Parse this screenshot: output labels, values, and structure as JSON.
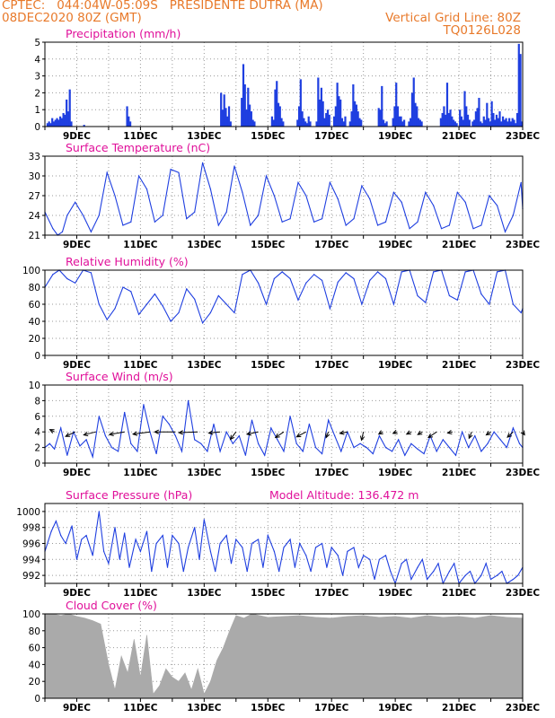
{
  "header": {
    "line1_left": "CPTEC:   044:04W-05:09S   PRESIDENTE DUTRA (MA)",
    "line2_left": "08DEC2020 80Z (GMT)",
    "line2_right": "Vertical Grid Line: 80Z",
    "line3_right": "TQ0126L028"
  },
  "colors": {
    "header": "#e8792a",
    "panel_title": "#e0109a",
    "series": "#1f3fe0",
    "cloud": "#aaaaaa",
    "wind_arrow": "#000000"
  },
  "chart_data": [
    {
      "type": "bar",
      "title": "Precipitation (mm/h)",
      "xlabel": "",
      "ylabel": "",
      "x_ticks": [
        "9DEC",
        "11DEC",
        "13DEC",
        "15DEC",
        "17DEC",
        "19DEC",
        "21DEC",
        "23DEC"
      ],
      "x_range_days": [
        8.0,
        23.0
      ],
      "ylim": [
        0,
        5
      ],
      "y_ticks": [
        0,
        1,
        2,
        3,
        4,
        5
      ],
      "grid": true,
      "x_days": [
        8.05,
        8.1,
        8.15,
        8.2,
        8.25,
        8.3,
        8.35,
        8.4,
        8.45,
        8.5,
        8.55,
        8.6,
        8.65,
        8.7,
        8.75,
        8.8,
        9.2,
        10.55,
        10.6,
        10.65,
        13.5,
        13.55,
        13.6,
        13.65,
        13.7,
        13.75,
        13.8,
        14.15,
        14.2,
        14.25,
        14.3,
        14.35,
        14.4,
        14.45,
        14.5,
        14.55,
        15.1,
        15.15,
        15.2,
        15.25,
        15.3,
        15.35,
        15.4,
        15.45,
        15.9,
        15.95,
        16.0,
        16.05,
        16.1,
        16.15,
        16.2,
        16.25,
        16.3,
        16.5,
        16.55,
        16.6,
        16.65,
        16.7,
        16.75,
        16.8,
        16.85,
        16.9,
        17.05,
        17.1,
        17.15,
        17.2,
        17.25,
        17.3,
        17.35,
        17.4,
        17.55,
        17.6,
        17.65,
        17.7,
        17.75,
        17.8,
        17.85,
        17.9,
        18.45,
        18.5,
        18.55,
        18.6,
        18.65,
        18.7,
        18.9,
        18.95,
        19.0,
        19.05,
        19.1,
        19.15,
        19.2,
        19.25,
        19.4,
        19.45,
        19.5,
        19.55,
        19.6,
        19.65,
        19.7,
        19.75,
        19.8,
        20.4,
        20.45,
        20.5,
        20.55,
        20.6,
        20.65,
        20.7,
        20.75,
        20.8,
        20.85,
        20.9,
        21.0,
        21.05,
        21.1,
        21.15,
        21.2,
        21.25,
        21.3,
        21.4,
        21.45,
        21.5,
        21.55,
        21.6,
        21.65,
        21.7,
        21.75,
        21.8,
        21.85,
        21.9,
        21.95,
        22.0,
        22.05,
        22.1,
        22.15,
        22.2,
        22.25,
        22.3,
        22.35,
        22.4,
        22.45,
        22.5,
        22.55,
        22.6,
        22.65,
        22.7,
        22.75,
        22.8,
        22.85,
        22.9,
        22.95
      ],
      "values": [
        0.2,
        0.3,
        0.2,
        0.5,
        0.3,
        0.4,
        0.5,
        0.4,
        0.6,
        0.5,
        0.8,
        0.7,
        1.6,
        0.9,
        2.2,
        0.3,
        0.1,
        1.2,
        0.6,
        0.3,
        2.0,
        1.0,
        1.9,
        1.1,
        0.6,
        1.2,
        0.3,
        1.7,
        3.7,
        2.5,
        1.0,
        2.3,
        1.3,
        0.9,
        0.4,
        0.3,
        0.6,
        0.4,
        2.2,
        2.7,
        1.4,
        1.2,
        0.5,
        0.3,
        0.4,
        1.2,
        2.8,
        0.9,
        0.5,
        0.3,
        0.2,
        0.6,
        0.3,
        0.3,
        2.9,
        1.6,
        2.3,
        1.5,
        0.5,
        0.8,
        1.0,
        0.7,
        0.6,
        1.2,
        2.6,
        1.8,
        1.6,
        0.5,
        0.3,
        0.6,
        0.3,
        0.9,
        2.5,
        1.5,
        1.3,
        0.9,
        0.5,
        0.4,
        1.1,
        1.0,
        2.4,
        0.4,
        0.2,
        0.3,
        0.5,
        1.2,
        2.6,
        1.2,
        0.6,
        0.6,
        0.3,
        0.4,
        0.3,
        0.5,
        2.0,
        2.9,
        1.4,
        1.2,
        0.5,
        0.4,
        0.3,
        0.5,
        0.8,
        1.2,
        0.7,
        2.6,
        0.8,
        1.0,
        0.6,
        0.4,
        0.3,
        0.2,
        1.0,
        0.6,
        0.4,
        2.1,
        1.2,
        0.7,
        0.4,
        0.3,
        0.4,
        0.9,
        1.1,
        1.7,
        0.3,
        0.2,
        0.6,
        0.4,
        1.4,
        0.5,
        0.3,
        1.5,
        0.8,
        0.4,
        0.7,
        0.5,
        0.9,
        0.3,
        0.6,
        0.4,
        0.5,
        0.3,
        0.5,
        0.3,
        0.5,
        0.4,
        0.2,
        0.8,
        4.9,
        4.3,
        0.3
      ]
    },
    {
      "type": "line",
      "title": "Surface Temperature (nC)",
      "xlabel": "",
      "ylabel": "",
      "x_ticks": [
        "9DEC",
        "11DEC",
        "13DEC",
        "15DEC",
        "17DEC",
        "19DEC",
        "21DEC",
        "23DEC"
      ],
      "x_range_days": [
        8.0,
        23.0
      ],
      "ylim": [
        21,
        33
      ],
      "y_ticks": [
        21,
        24,
        27,
        30,
        33
      ],
      "grid": true,
      "x_days": [
        8.0,
        8.25,
        8.4,
        8.55,
        8.7,
        8.95,
        9.2,
        9.45,
        9.7,
        9.95,
        10.2,
        10.45,
        10.7,
        10.95,
        11.2,
        11.45,
        11.7,
        11.95,
        12.2,
        12.45,
        12.7,
        12.95,
        13.2,
        13.45,
        13.7,
        13.95,
        14.2,
        14.45,
        14.7,
        14.95,
        15.2,
        15.45,
        15.7,
        15.95,
        16.2,
        16.45,
        16.7,
        16.95,
        17.2,
        17.45,
        17.7,
        17.95,
        18.2,
        18.45,
        18.7,
        18.95,
        19.2,
        19.45,
        19.7,
        19.95,
        20.2,
        20.45,
        20.7,
        20.95,
        21.2,
        21.45,
        21.7,
        21.95,
        22.2,
        22.45,
        22.7,
        22.95,
        23.0
      ],
      "values": [
        24.5,
        22.0,
        21.0,
        21.5,
        24.0,
        26.0,
        24.0,
        21.5,
        24.0,
        30.5,
        27.0,
        22.5,
        23.0,
        30.0,
        28.0,
        23.0,
        24.0,
        31.0,
        30.5,
        23.5,
        24.5,
        32.0,
        28.0,
        22.5,
        24.5,
        31.5,
        27.5,
        22.5,
        24.0,
        30.0,
        27.0,
        23.0,
        23.5,
        29.0,
        27.0,
        23.0,
        23.5,
        29.0,
        26.5,
        22.5,
        23.5,
        28.5,
        26.5,
        22.5,
        23.0,
        27.5,
        26.0,
        22.0,
        23.0,
        27.5,
        25.5,
        22.0,
        22.5,
        27.5,
        26.0,
        22.0,
        22.5,
        27.0,
        25.5,
        21.5,
        24.0,
        29.0,
        25.0
      ]
    },
    {
      "type": "line",
      "title": "Relative Humidity (%)",
      "xlabel": "",
      "ylabel": "",
      "x_ticks": [
        "9DEC",
        "11DEC",
        "13DEC",
        "15DEC",
        "17DEC",
        "19DEC",
        "21DEC",
        "23DEC"
      ],
      "x_range_days": [
        8.0,
        23.0
      ],
      "ylim": [
        0,
        100
      ],
      "y_ticks": [
        0,
        20,
        40,
        60,
        80,
        100
      ],
      "grid": true,
      "x_days": [
        8.0,
        8.25,
        8.45,
        8.7,
        8.95,
        9.2,
        9.45,
        9.7,
        9.95,
        10.2,
        10.45,
        10.7,
        10.95,
        11.2,
        11.45,
        11.7,
        11.95,
        12.2,
        12.45,
        12.7,
        12.95,
        13.2,
        13.45,
        13.7,
        13.95,
        14.2,
        14.45,
        14.7,
        14.95,
        15.2,
        15.45,
        15.7,
        15.95,
        16.2,
        16.45,
        16.7,
        16.95,
        17.2,
        17.45,
        17.7,
        17.95,
        18.2,
        18.45,
        18.7,
        18.95,
        19.2,
        19.45,
        19.7,
        19.95,
        20.2,
        20.45,
        20.7,
        20.95,
        21.2,
        21.45,
        21.7,
        21.95,
        22.2,
        22.45,
        22.7,
        22.95,
        23.0
      ],
      "values": [
        80,
        95,
        100,
        90,
        85,
        100,
        97,
        60,
        42,
        55,
        80,
        75,
        48,
        60,
        72,
        58,
        40,
        50,
        78,
        66,
        38,
        50,
        70,
        60,
        50,
        95,
        100,
        85,
        60,
        90,
        98,
        90,
        65,
        85,
        95,
        88,
        55,
        86,
        97,
        90,
        60,
        88,
        98,
        90,
        60,
        98,
        100,
        70,
        62,
        98,
        100,
        70,
        65,
        98,
        100,
        72,
        60,
        98,
        100,
        60,
        50,
        55
      ]
    },
    {
      "type": "line",
      "title": "Surface Wind (m/s)",
      "xlabel": "",
      "ylabel": "",
      "x_ticks": [
        "9DEC",
        "11DEC",
        "13DEC",
        "15DEC",
        "17DEC",
        "19DEC",
        "21DEC",
        "23DEC"
      ],
      "x_range_days": [
        8.0,
        23.0
      ],
      "ylim": [
        0,
        10
      ],
      "y_ticks": [
        0,
        2,
        4,
        6,
        8,
        10
      ],
      "grid": true,
      "x_days": [
        8.0,
        8.15,
        8.3,
        8.5,
        8.7,
        8.9,
        9.1,
        9.3,
        9.5,
        9.7,
        9.9,
        10.1,
        10.3,
        10.5,
        10.7,
        10.9,
        11.1,
        11.3,
        11.5,
        11.7,
        11.9,
        12.1,
        12.3,
        12.5,
        12.7,
        12.9,
        13.1,
        13.3,
        13.5,
        13.7,
        13.9,
        14.1,
        14.3,
        14.5,
        14.7,
        14.9,
        15.1,
        15.3,
        15.5,
        15.7,
        15.9,
        16.1,
        16.3,
        16.5,
        16.7,
        16.9,
        17.1,
        17.3,
        17.5,
        17.7,
        17.9,
        18.1,
        18.3,
        18.5,
        18.7,
        18.9,
        19.1,
        19.3,
        19.5,
        19.7,
        19.9,
        20.1,
        20.3,
        20.5,
        20.7,
        20.9,
        21.1,
        21.3,
        21.5,
        21.7,
        21.9,
        22.1,
        22.3,
        22.5,
        22.7,
        22.9,
        23.0
      ],
      "values": [
        2.0,
        2.5,
        1.8,
        4.5,
        1.0,
        4.0,
        2.2,
        3.0,
        0.8,
        6.0,
        3.5,
        2.0,
        1.5,
        6.5,
        2.5,
        1.5,
        7.5,
        4.0,
        1.2,
        6.0,
        5.0,
        3.5,
        1.5,
        8.0,
        3.0,
        2.5,
        1.5,
        5.0,
        1.5,
        4.0,
        2.5,
        3.5,
        1.0,
        5.5,
        2.5,
        1.0,
        4.5,
        3.0,
        1.5,
        6.0,
        2.5,
        1.5,
        5.0,
        2.0,
        1.2,
        5.5,
        3.5,
        1.5,
        4.0,
        2.0,
        2.5,
        2.0,
        1.2,
        3.5,
        2.0,
        1.5,
        3.0,
        1.0,
        2.5,
        1.8,
        1.2,
        3.5,
        1.5,
        3.0,
        2.0,
        1.0,
        4.0,
        2.0,
        3.5,
        1.5,
        2.5,
        4.0,
        3.0,
        2.0,
        4.5,
        2.5,
        2.0
      ],
      "wind_arrows": [
        {
          "day": 8.3,
          "u": 1.2,
          "v": -0.6
        },
        {
          "day": 8.95,
          "u": 2.5,
          "v": 1.2
        },
        {
          "day": 9.6,
          "u": 3.2,
          "v": 0.8
        },
        {
          "day": 10.5,
          "u": 4.0,
          "v": 0.7
        },
        {
          "day": 11.3,
          "u": 4.5,
          "v": 0.6
        },
        {
          "day": 12.1,
          "u": 5.5,
          "v": 0.0
        },
        {
          "day": 12.8,
          "u": 5.0,
          "v": 0.2
        },
        {
          "day": 13.5,
          "u": 3.0,
          "v": 0.3
        },
        {
          "day": 14.0,
          "u": 1.5,
          "v": 2.0
        },
        {
          "day": 14.7,
          "u": 3.0,
          "v": 0.6
        },
        {
          "day": 15.5,
          "u": 2.2,
          "v": 1.5
        },
        {
          "day": 16.2,
          "u": 2.5,
          "v": 1.3
        },
        {
          "day": 16.9,
          "u": 0.6,
          "v": 1.5
        },
        {
          "day": 17.5,
          "u": 2.0,
          "v": 0.4
        },
        {
          "day": 18.0,
          "u": 0.5,
          "v": 2.2
        },
        {
          "day": 18.6,
          "u": 1.0,
          "v": 0.6
        },
        {
          "day": 19.05,
          "u": 1.0,
          "v": 0.4
        },
        {
          "day": 19.5,
          "u": 1.2,
          "v": 0.6
        },
        {
          "day": 19.85,
          "u": 1.2,
          "v": 0.7
        },
        {
          "day": 20.3,
          "u": 2.2,
          "v": 1.5
        },
        {
          "day": 20.8,
          "u": 1.3,
          "v": 0.3
        },
        {
          "day": 21.4,
          "u": 0.7,
          "v": 1.7
        },
        {
          "day": 22.0,
          "u": 1.2,
          "v": 0.8
        },
        {
          "day": 22.7,
          "u": 1.5,
          "v": 1.4
        },
        {
          "day": 23.0,
          "u": -0.5,
          "v": 0.8
        }
      ]
    },
    {
      "type": "line",
      "title": "Surface Pressure (hPa)",
      "subtitle": "Model Altitude: 136.472  m",
      "xlabel": "",
      "ylabel": "",
      "x_ticks": [
        "9DEC",
        "11DEC",
        "13DEC",
        "15DEC",
        "17DEC",
        "19DEC",
        "21DEC",
        "23DEC"
      ],
      "x_range_days": [
        8.0,
        23.0
      ],
      "ylim": [
        991,
        1001
      ],
      "y_ticks": [
        992,
        994,
        996,
        998,
        1000
      ],
      "grid": true,
      "x_days": [
        8.0,
        8.2,
        8.35,
        8.5,
        8.65,
        8.85,
        9.0,
        9.15,
        9.3,
        9.5,
        9.7,
        9.85,
        10.0,
        10.2,
        10.35,
        10.5,
        10.65,
        10.85,
        11.0,
        11.2,
        11.35,
        11.5,
        11.7,
        11.85,
        12.0,
        12.2,
        12.35,
        12.5,
        12.7,
        12.85,
        13.0,
        13.2,
        13.35,
        13.5,
        13.7,
        13.85,
        14.0,
        14.2,
        14.35,
        14.5,
        14.7,
        14.85,
        15.0,
        15.2,
        15.35,
        15.5,
        15.7,
        15.85,
        16.0,
        16.2,
        16.35,
        16.5,
        16.7,
        16.85,
        17.0,
        17.2,
        17.35,
        17.5,
        17.7,
        17.85,
        18.0,
        18.2,
        18.35,
        18.5,
        18.7,
        18.85,
        19.0,
        19.2,
        19.35,
        19.5,
        19.7,
        19.85,
        20.0,
        20.2,
        20.35,
        20.5,
        20.7,
        20.85,
        21.0,
        21.2,
        21.35,
        21.5,
        21.7,
        21.85,
        22.0,
        22.2,
        22.35,
        22.5,
        22.7,
        22.85,
        23.0
      ],
      "values": [
        995.0,
        997.5,
        998.8,
        997.0,
        996.0,
        998.2,
        994.0,
        996.5,
        997.0,
        994.5,
        1000.0,
        995.0,
        993.5,
        998.0,
        994.0,
        997.3,
        993.0,
        996.5,
        995.0,
        997.5,
        992.5,
        996.0,
        997.0,
        993.0,
        997.0,
        996.0,
        992.5,
        995.5,
        998.0,
        994.0,
        999.0,
        995.0,
        992.5,
        996.0,
        997.0,
        993.5,
        996.5,
        995.5,
        992.5,
        996.0,
        996.5,
        993.0,
        997.0,
        995.0,
        992.5,
        995.5,
        996.5,
        993.0,
        996.0,
        994.5,
        992.5,
        995.5,
        996.0,
        993.0,
        995.5,
        994.5,
        992.0,
        995.0,
        995.5,
        993.0,
        994.5,
        994.0,
        991.5,
        994.0,
        994.5,
        992.5,
        991.0,
        993.5,
        994.0,
        991.5,
        993.0,
        994.0,
        991.5,
        992.5,
        993.5,
        991.0,
        992.5,
        993.5,
        991.0,
        992.0,
        992.5,
        991.0,
        992.0,
        993.5,
        991.5,
        992.0,
        992.5,
        991.0,
        991.5,
        992.0,
        993.0
      ]
    },
    {
      "type": "area",
      "title": "Cloud Cover (%)",
      "xlabel": "",
      "ylabel": "",
      "x_ticks": [
        "9DEC",
        "11DEC",
        "13DEC",
        "15DEC",
        "17DEC",
        "19DEC",
        "21DEC",
        "23DEC"
      ],
      "x_range_days": [
        8.0,
        23.0
      ],
      "ylim": [
        0,
        100
      ],
      "y_ticks": [
        0,
        20,
        40,
        60,
        80,
        100
      ],
      "grid": true,
      "x_days": [
        8.0,
        8.25,
        8.5,
        8.75,
        9.0,
        9.25,
        9.5,
        9.75,
        10.0,
        10.2,
        10.4,
        10.6,
        10.8,
        11.0,
        11.2,
        11.4,
        11.6,
        11.8,
        12.0,
        12.2,
        12.4,
        12.6,
        12.8,
        13.0,
        13.2,
        13.4,
        13.6,
        13.8,
        14.0,
        14.25,
        14.5,
        14.75,
        15.0,
        15.5,
        16.0,
        16.5,
        17.0,
        17.5,
        18.0,
        18.5,
        19.0,
        19.5,
        20.0,
        20.5,
        21.0,
        21.5,
        22.0,
        22.5,
        23.0
      ],
      "values": [
        100,
        100,
        98,
        100,
        97,
        95,
        92,
        88,
        40,
        10,
        50,
        30,
        70,
        25,
        75,
        5,
        15,
        35,
        25,
        20,
        30,
        10,
        35,
        5,
        20,
        45,
        60,
        80,
        98,
        95,
        100,
        98,
        96,
        97,
        98,
        96,
        95,
        97,
        98,
        96,
        97,
        95,
        98,
        96,
        97,
        95,
        98,
        96,
        95
      ]
    }
  ]
}
